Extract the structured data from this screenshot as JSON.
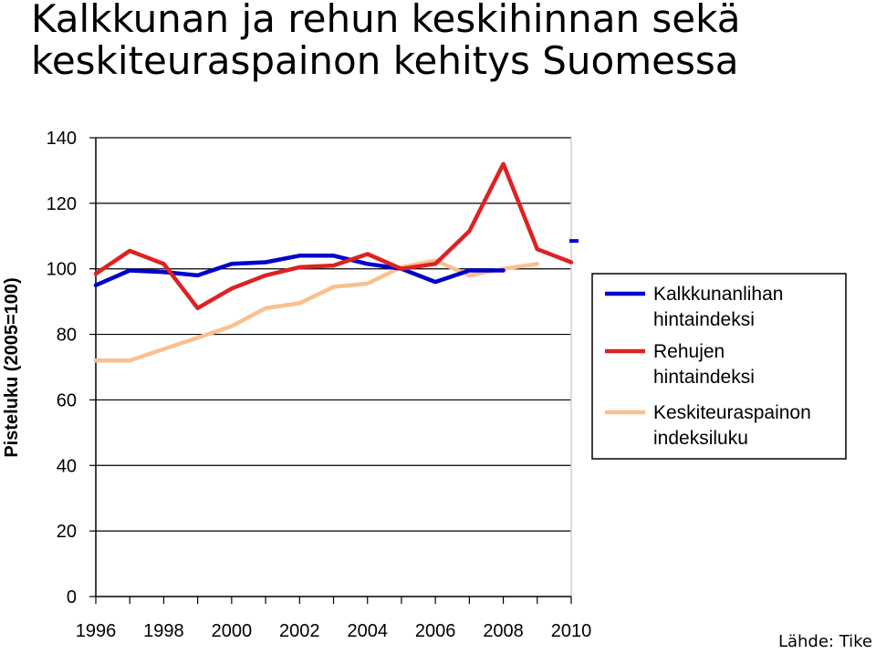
{
  "chart_data": {
    "type": "line",
    "title": [
      "Kalkkunan ja rehun keskihinnan sekä",
      "keskiteuraspainon kehitys Suomessa"
    ],
    "ylabel": "Pisteluku (2005=100)",
    "xlabel": "",
    "source": "Lähde: Tike",
    "ylim": [
      0,
      140
    ],
    "xlim": [
      1996,
      2010
    ],
    "yticks": [
      "0",
      "20",
      "40",
      "60",
      "80",
      "100",
      "120",
      "140"
    ],
    "xticks": [
      "1996",
      "1998",
      "2000",
      "2002",
      "2004",
      "2006",
      "2008",
      "2010"
    ],
    "gridlines": true,
    "legend_position": "right",
    "series": [
      {
        "name": [
          "Kalkkunanlihan",
          "hintaindeksi"
        ],
        "color": "#0000CC",
        "x": [
          1996,
          1997,
          1998,
          1999,
          2000,
          2001,
          2002,
          2003,
          2004,
          2005,
          2006,
          2007,
          2008
        ],
        "values": [
          95,
          99.5,
          99,
          98,
          101.5,
          102,
          104,
          104,
          101.5,
          100,
          96,
          99.5,
          99.5
        ],
        "extra_mark": {
          "x": 2010,
          "value": 108.5
        }
      },
      {
        "name": [
          "Rehujen",
          "hintaindeksi"
        ],
        "color": "#DD2222",
        "x": [
          1996,
          1997,
          1998,
          1999,
          2000,
          2001,
          2002,
          2003,
          2004,
          2005,
          2006,
          2007,
          2008,
          2009,
          2010
        ],
        "values": [
          98.5,
          105.5,
          101.5,
          88,
          94,
          98,
          100.5,
          101,
          104.5,
          100,
          101.5,
          111.5,
          132,
          106,
          102
        ]
      },
      {
        "name": [
          "Keskiteuraspainon",
          "indeksiluku"
        ],
        "color": "#FAC090",
        "x": [
          1996,
          1997,
          1998,
          1999,
          2000,
          2001,
          2002,
          2003,
          2004,
          2005,
          2006,
          2007,
          2008,
          2009
        ],
        "values": [
          72,
          72,
          75.5,
          79,
          82.5,
          88,
          89.5,
          94.5,
          95.5,
          100.5,
          102.5,
          98,
          100,
          101.5
        ]
      }
    ]
  }
}
